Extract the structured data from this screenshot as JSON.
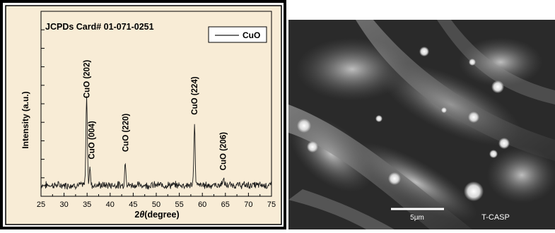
{
  "chart_data": {
    "type": "line",
    "title": "",
    "annotation": "JCPDs Card# 01-071-0251",
    "xlabel_prefix": "2",
    "xlabel_theta": "θ",
    "xlabel_suffix": "(degree)",
    "ylabel": "Intensity (a.u.)",
    "xlim": [
      25,
      75
    ],
    "ylim": [
      0,
      100
    ],
    "xticks": [
      "25",
      "30",
      "35",
      "40",
      "45",
      "50",
      "55",
      "60",
      "65",
      "70",
      "75"
    ],
    "legend": {
      "label": "CuO",
      "position": "top-right"
    },
    "grid": false,
    "series": [
      {
        "name": "CuO",
        "peaks": [
          {
            "x": 34.9,
            "y": 48,
            "width": 0.22
          },
          {
            "x": 35.6,
            "y": 10,
            "width": 0.18
          },
          {
            "x": 43.3,
            "y": 13,
            "width": 0.2
          },
          {
            "x": 58.3,
            "y": 33,
            "width": 0.2
          },
          {
            "x": 64.5,
            "y": 3,
            "width": 0.3
          }
        ],
        "baseline": 6
      }
    ],
    "peak_labels": [
      {
        "text": "CuO (202)",
        "x": 34.9,
        "y": 53
      },
      {
        "text": "CuO (004)",
        "x": 36.0,
        "y": 20
      },
      {
        "text": "CuO (220)",
        "x": 43.3,
        "y": 24
      },
      {
        "text": "CuO (224)",
        "x": 58.3,
        "y": 44
      },
      {
        "text": "CuO (206)",
        "x": 64.5,
        "y": 14
      }
    ],
    "colors": {
      "frame_bg": "#f8ecd6",
      "line": "#1a1a1a",
      "border": "#000000"
    }
  },
  "micrograph": {
    "scale_label": "5μm",
    "tag": "T-CASP"
  }
}
